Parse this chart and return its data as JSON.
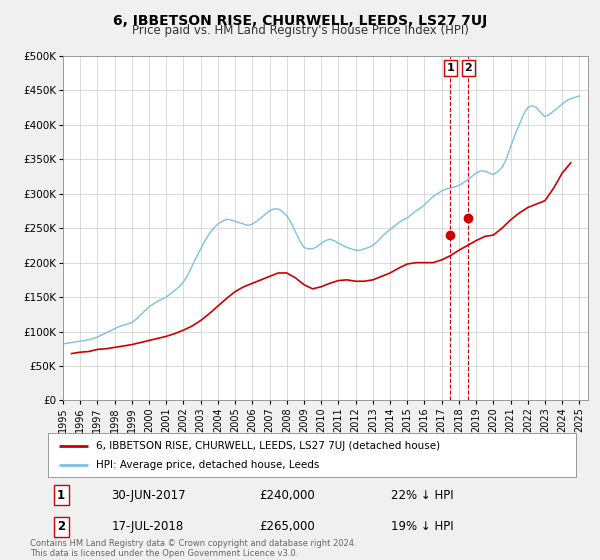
{
  "title": "6, IBBETSON RISE, CHURWELL, LEEDS, LS27 7UJ",
  "subtitle": "Price paid vs. HM Land Registry's House Price Index (HPI)",
  "hpi_color": "#7fbfdf",
  "price_color": "#cc0000",
  "marker_color": "#cc0000",
  "annotation_line_color": "#cc0000",
  "grid_color": "#cccccc",
  "background_color": "#f0f0f0",
  "plot_background": "#ffffff",
  "ylim": [
    0,
    500000
  ],
  "yticks": [
    0,
    50000,
    100000,
    150000,
    200000,
    250000,
    300000,
    350000,
    400000,
    450000,
    500000
  ],
  "ytick_labels": [
    "£0",
    "£50K",
    "£100K",
    "£150K",
    "£200K",
    "£250K",
    "£300K",
    "£350K",
    "£400K",
    "£450K",
    "£500K"
  ],
  "xlim_start": 1995.0,
  "xlim_end": 2025.5,
  "xticks": [
    1995,
    1996,
    1997,
    1998,
    1999,
    2000,
    2001,
    2002,
    2003,
    2004,
    2005,
    2006,
    2007,
    2008,
    2009,
    2010,
    2011,
    2012,
    2013,
    2014,
    2015,
    2016,
    2017,
    2018,
    2019,
    2020,
    2021,
    2022,
    2023,
    2024,
    2025
  ],
  "sale1_x": 2017.5,
  "sale1_y": 240000,
  "sale2_x": 2018.54,
  "sale2_y": 265000,
  "legend_label_price": "6, IBBETSON RISE, CHURWELL, LEEDS, LS27 7UJ (detached house)",
  "legend_label_hpi": "HPI: Average price, detached house, Leeds",
  "annotation1_label": "1",
  "annotation2_label": "2",
  "annotation1_date": "30-JUN-2017",
  "annotation1_price": "£240,000",
  "annotation1_pct": "22% ↓ HPI",
  "annotation2_date": "17-JUL-2018",
  "annotation2_price": "£265,000",
  "annotation2_pct": "19% ↓ HPI",
  "footer_text": "Contains HM Land Registry data © Crown copyright and database right 2024.\nThis data is licensed under the Open Government Licence v3.0.",
  "hpi_data_x": [
    1995.0,
    1995.25,
    1995.5,
    1995.75,
    1996.0,
    1996.25,
    1996.5,
    1996.75,
    1997.0,
    1997.25,
    1997.5,
    1997.75,
    1998.0,
    1998.25,
    1998.5,
    1998.75,
    1999.0,
    1999.25,
    1999.5,
    1999.75,
    2000.0,
    2000.25,
    2000.5,
    2000.75,
    2001.0,
    2001.25,
    2001.5,
    2001.75,
    2002.0,
    2002.25,
    2002.5,
    2002.75,
    2003.0,
    2003.25,
    2003.5,
    2003.75,
    2004.0,
    2004.25,
    2004.5,
    2004.75,
    2005.0,
    2005.25,
    2005.5,
    2005.75,
    2006.0,
    2006.25,
    2006.5,
    2006.75,
    2007.0,
    2007.25,
    2007.5,
    2007.75,
    2008.0,
    2008.25,
    2008.5,
    2008.75,
    2009.0,
    2009.25,
    2009.5,
    2009.75,
    2010.0,
    2010.25,
    2010.5,
    2010.75,
    2011.0,
    2011.25,
    2011.5,
    2011.75,
    2012.0,
    2012.25,
    2012.5,
    2012.75,
    2013.0,
    2013.25,
    2013.5,
    2013.75,
    2014.0,
    2014.25,
    2014.5,
    2014.75,
    2015.0,
    2015.25,
    2015.5,
    2015.75,
    2016.0,
    2016.25,
    2016.5,
    2016.75,
    2017.0,
    2017.25,
    2017.5,
    2017.75,
    2018.0,
    2018.25,
    2018.5,
    2018.75,
    2019.0,
    2019.25,
    2019.5,
    2019.75,
    2020.0,
    2020.25,
    2020.5,
    2020.75,
    2021.0,
    2021.25,
    2021.5,
    2021.75,
    2022.0,
    2022.25,
    2022.5,
    2022.75,
    2023.0,
    2023.25,
    2023.5,
    2023.75,
    2024.0,
    2024.25,
    2024.5,
    2024.75,
    2025.0
  ],
  "hpi_data_y": [
    82000,
    83000,
    84000,
    85000,
    86000,
    87000,
    88000,
    90000,
    92000,
    95000,
    98000,
    101000,
    104000,
    107000,
    109000,
    111000,
    113000,
    118000,
    124000,
    130000,
    136000,
    140000,
    144000,
    147000,
    150000,
    155000,
    160000,
    165000,
    172000,
    182000,
    195000,
    208000,
    220000,
    232000,
    242000,
    250000,
    256000,
    260000,
    263000,
    262000,
    260000,
    258000,
    256000,
    254000,
    256000,
    260000,
    265000,
    270000,
    275000,
    278000,
    278000,
    274000,
    268000,
    258000,
    245000,
    232000,
    222000,
    220000,
    220000,
    223000,
    228000,
    232000,
    234000,
    232000,
    228000,
    225000,
    222000,
    220000,
    218000,
    218000,
    220000,
    222000,
    225000,
    230000,
    237000,
    243000,
    248000,
    253000,
    258000,
    262000,
    265000,
    270000,
    275000,
    279000,
    284000,
    290000,
    296000,
    300000,
    304000,
    307000,
    308000,
    310000,
    312000,
    316000,
    320000,
    325000,
    330000,
    333000,
    333000,
    330000,
    328000,
    332000,
    338000,
    350000,
    368000,
    385000,
    400000,
    415000,
    425000,
    428000,
    425000,
    418000,
    412000,
    415000,
    420000,
    425000,
    430000,
    435000,
    438000,
    440000,
    442000
  ],
  "price_data_x": [
    1995.5,
    1996.0,
    1996.5,
    1997.0,
    1997.5,
    1998.0,
    1998.5,
    1999.0,
    1999.5,
    2000.0,
    2000.5,
    2001.0,
    2001.5,
    2002.0,
    2002.5,
    2003.0,
    2003.5,
    2004.0,
    2004.5,
    2005.0,
    2005.5,
    2006.0,
    2006.5,
    2007.0,
    2007.5,
    2008.0,
    2008.5,
    2009.0,
    2009.5,
    2010.0,
    2010.5,
    2011.0,
    2011.5,
    2012.0,
    2012.5,
    2013.0,
    2013.5,
    2014.0,
    2014.5,
    2015.0,
    2015.5,
    2016.0,
    2016.5,
    2017.0,
    2017.5,
    2018.0,
    2018.5,
    2019.0,
    2019.5,
    2020.0,
    2020.5,
    2021.0,
    2021.5,
    2022.0,
    2022.5,
    2023.0,
    2023.5,
    2024.0,
    2024.5
  ],
  "price_data_y": [
    68000,
    70000,
    71000,
    74000,
    75000,
    77000,
    79000,
    81000,
    84000,
    87000,
    90000,
    93000,
    97000,
    102000,
    108000,
    116000,
    126000,
    137000,
    148000,
    158000,
    165000,
    170000,
    175000,
    180000,
    185000,
    185000,
    178000,
    168000,
    162000,
    165000,
    170000,
    174000,
    175000,
    173000,
    173000,
    175000,
    180000,
    185000,
    192000,
    198000,
    200000,
    200000,
    200000,
    204000,
    210000,
    218000,
    225000,
    232000,
    238000,
    240000,
    250000,
    262000,
    272000,
    280000,
    285000,
    290000,
    308000,
    330000,
    345000
  ]
}
